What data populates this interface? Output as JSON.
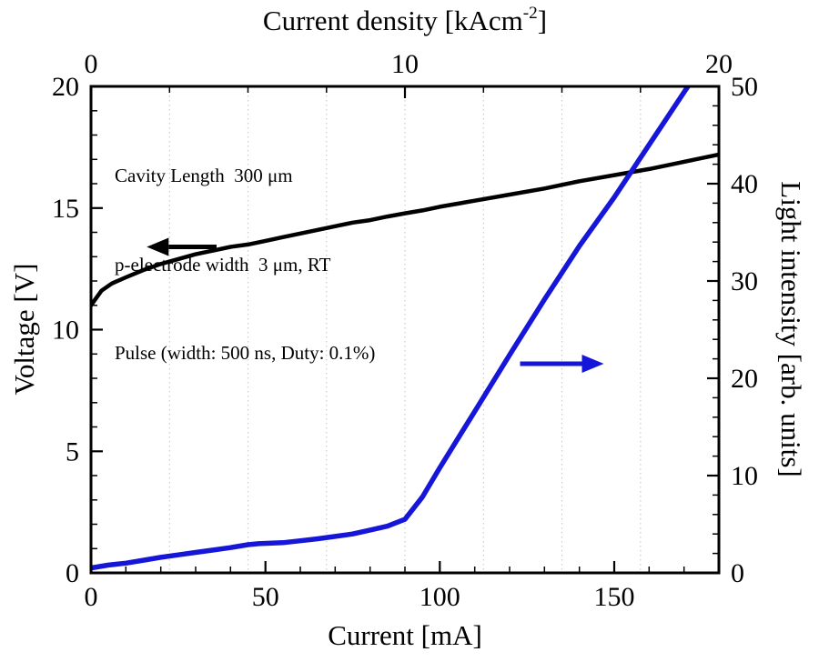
{
  "figure": {
    "background": "#ffffff",
    "annotation_lines": [
      "Cavity Length  300 μm",
      "p-electrode width  3 μm, RT",
      "Pulse (width: 500 ns, Duty: 0.1%)"
    ]
  },
  "chart_data": {
    "type": "line",
    "title": "",
    "axes": {
      "top": {
        "label": "Current density [kAcm⁻²]",
        "label_parts": {
          "pre": "Current density [kAcm",
          "sup": "-2",
          "post": "]"
        },
        "range": [
          0,
          20
        ],
        "major_ticks": [
          0,
          10,
          20
        ],
        "minor_step": 2.5
      },
      "bottom": {
        "label": "Current [mA]",
        "range": [
          0,
          180
        ],
        "major_ticks": [
          0,
          50,
          100,
          150
        ],
        "minor_step": 10
      },
      "left": {
        "label": "Voltage [V]",
        "range": [
          0,
          20
        ],
        "major_ticks": [
          0,
          5,
          10,
          15,
          20
        ],
        "minor_step": 1
      },
      "right": {
        "label": "Light intensity [arb. units]",
        "range": [
          0,
          50
        ],
        "major_ticks": [
          0,
          10,
          20,
          30,
          40,
          50
        ],
        "minor_step": 2
      }
    },
    "grid": {
      "axis": "top",
      "step": 2.5,
      "color": "#cccccc",
      "style": "dotted"
    },
    "series": [
      {
        "name": "voltage-vs-current",
        "label": "Voltage",
        "y_axis": "left",
        "color": "#000000",
        "width": 4.5,
        "points": [
          [
            0,
            11.0
          ],
          [
            3,
            11.6
          ],
          [
            6,
            11.9
          ],
          [
            10,
            12.15
          ],
          [
            15,
            12.45
          ],
          [
            20,
            12.7
          ],
          [
            25,
            12.9
          ],
          [
            30,
            13.1
          ],
          [
            35,
            13.25
          ],
          [
            40,
            13.4
          ],
          [
            45,
            13.5
          ],
          [
            50,
            13.65
          ],
          [
            55,
            13.8
          ],
          [
            60,
            13.95
          ],
          [
            65,
            14.1
          ],
          [
            70,
            14.25
          ],
          [
            75,
            14.4
          ],
          [
            80,
            14.5
          ],
          [
            85,
            14.65
          ],
          [
            90,
            14.78
          ],
          [
            95,
            14.9
          ],
          [
            100,
            15.05
          ],
          [
            110,
            15.3
          ],
          [
            120,
            15.55
          ],
          [
            130,
            15.8
          ],
          [
            140,
            16.1
          ],
          [
            150,
            16.35
          ],
          [
            160,
            16.6
          ],
          [
            170,
            16.9
          ],
          [
            180,
            17.2
          ]
        ]
      },
      {
        "name": "light-vs-current",
        "label": "Light intensity",
        "y_axis": "right",
        "color": "#1616d8",
        "width": 5.5,
        "points": [
          [
            0,
            0.5
          ],
          [
            5,
            0.8
          ],
          [
            10,
            1.0
          ],
          [
            15,
            1.3
          ],
          [
            20,
            1.6
          ],
          [
            25,
            1.85
          ],
          [
            30,
            2.1
          ],
          [
            35,
            2.35
          ],
          [
            40,
            2.6
          ],
          [
            45,
            2.9
          ],
          [
            48,
            3.0
          ],
          [
            55,
            3.1
          ],
          [
            60,
            3.3
          ],
          [
            65,
            3.5
          ],
          [
            70,
            3.75
          ],
          [
            75,
            4.0
          ],
          [
            80,
            4.4
          ],
          [
            85,
            4.8
          ],
          [
            90,
            5.5
          ],
          [
            95,
            7.8
          ],
          [
            100,
            10.8
          ],
          [
            110,
            16.6
          ],
          [
            120,
            22.4
          ],
          [
            130,
            28.1
          ],
          [
            140,
            33.6
          ],
          [
            150,
            38.6
          ],
          [
            160,
            44.0
          ],
          [
            170,
            49.4
          ],
          [
            173,
            51.0
          ]
        ]
      }
    ],
    "arrows": [
      {
        "name": "voltage-axis-arrow",
        "color": "#000000",
        "y_axis": "left",
        "y": 13.4,
        "x_tail": 36,
        "x_head": 16
      },
      {
        "name": "light-axis-arrow",
        "color": "#1616d8",
        "y_axis": "right",
        "y": 21.5,
        "x_tail": 123,
        "x_head": 147
      }
    ]
  }
}
